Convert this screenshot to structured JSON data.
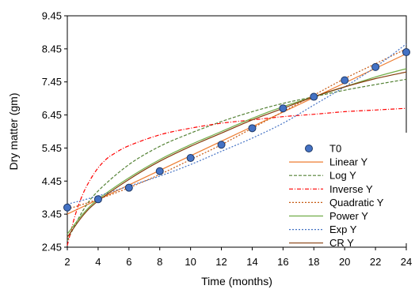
{
  "chart_data": {
    "type": "scatter",
    "title": "",
    "xlabel": "Time (months)",
    "ylabel": "Dry matter (gm)",
    "xlim": [
      2,
      24
    ],
    "ylim": [
      2.45,
      9.45
    ],
    "x_ticks": [
      2,
      4,
      6,
      8,
      10,
      12,
      14,
      16,
      18,
      20,
      22,
      24
    ],
    "y_ticks": [
      2.45,
      3.45,
      4.45,
      5.45,
      6.45,
      7.45,
      8.45,
      9.45
    ],
    "x_tick_labels": [
      "2",
      "4",
      "6",
      "8",
      "10",
      "12",
      "14",
      "16",
      "18",
      "20",
      "22",
      "24"
    ],
    "y_tick_labels": [
      "2.45",
      "3.45",
      "4.45",
      "5.45",
      "6.45",
      "7.45",
      "8.45",
      "9.45"
    ],
    "grid": false,
    "legend_position": "right",
    "points": {
      "name": "T0",
      "color": "#4472c4",
      "x": [
        2,
        4,
        6,
        8,
        10,
        12,
        14,
        16,
        18,
        20,
        22,
        24
      ],
      "y": [
        3.65,
        3.9,
        4.25,
        4.75,
        5.15,
        5.55,
        6.05,
        6.65,
        7.0,
        7.5,
        7.9,
        8.35
      ]
    },
    "series": [
      {
        "name": "Linear Y",
        "color": "#ed7d31",
        "dash": "none",
        "x": [
          2,
          24
        ],
        "y": [
          3.45,
          8.3
        ]
      },
      {
        "name": "Log Y",
        "color": "#548235",
        "dash": "4,2",
        "x": [
          2,
          3,
          4,
          6,
          8,
          10,
          12,
          14,
          16,
          18,
          20,
          22,
          24
        ],
        "y": [
          2.65,
          3.55,
          4.15,
          4.95,
          5.5,
          5.9,
          6.25,
          6.55,
          6.8,
          7.0,
          7.2,
          7.37,
          7.53
        ]
      },
      {
        "name": "Inverse Y",
        "color": "#ff0000",
        "dash": "5,2,1,2",
        "x": [
          2,
          2.5,
          3,
          3.5,
          4,
          4.5,
          5,
          6,
          8,
          10,
          12,
          14,
          16,
          18,
          20,
          22,
          24
        ],
        "y": [
          2.5,
          3.4,
          4.05,
          4.5,
          4.85,
          5.1,
          5.27,
          5.52,
          5.85,
          6.05,
          6.2,
          6.3,
          6.4,
          6.47,
          6.55,
          6.6,
          6.65
        ]
      },
      {
        "name": "Quadratic Y",
        "color": "#c65911",
        "dash": "2,2",
        "x": [
          2,
          4,
          6,
          8,
          10,
          12,
          14,
          16,
          18,
          20,
          22,
          24
        ],
        "y": [
          3.6,
          3.9,
          4.25,
          4.65,
          5.1,
          5.55,
          6.05,
          6.55,
          7.05,
          7.55,
          8.0,
          8.45
        ]
      },
      {
        "name": "Power Y",
        "color": "#70ad47",
        "dash": "none",
        "x": [
          2,
          3,
          4,
          6,
          8,
          10,
          12,
          14,
          16,
          18,
          20,
          22,
          24
        ],
        "y": [
          2.85,
          3.45,
          3.9,
          4.55,
          5.1,
          5.55,
          5.95,
          6.35,
          6.7,
          7.0,
          7.3,
          7.6,
          7.85
        ]
      },
      {
        "name": "Exp Y",
        "color": "#4472c4",
        "dash": "2,2",
        "x": [
          2,
          4,
          6,
          8,
          10,
          12,
          14,
          16,
          18,
          20,
          22,
          24
        ],
        "y": [
          3.75,
          4.0,
          4.3,
          4.6,
          4.95,
          5.35,
          5.75,
          6.2,
          6.75,
          7.3,
          7.9,
          8.6
        ]
      },
      {
        "name": "CR Y",
        "color": "#843c0c",
        "dash": "none",
        "x": [
          2,
          3,
          4,
          6,
          8,
          10,
          12,
          14,
          16,
          18,
          20,
          22,
          24
        ],
        "y": [
          2.75,
          3.4,
          3.85,
          4.5,
          5.05,
          5.5,
          5.9,
          6.3,
          6.65,
          7.0,
          7.3,
          7.55,
          7.75
        ]
      }
    ]
  }
}
